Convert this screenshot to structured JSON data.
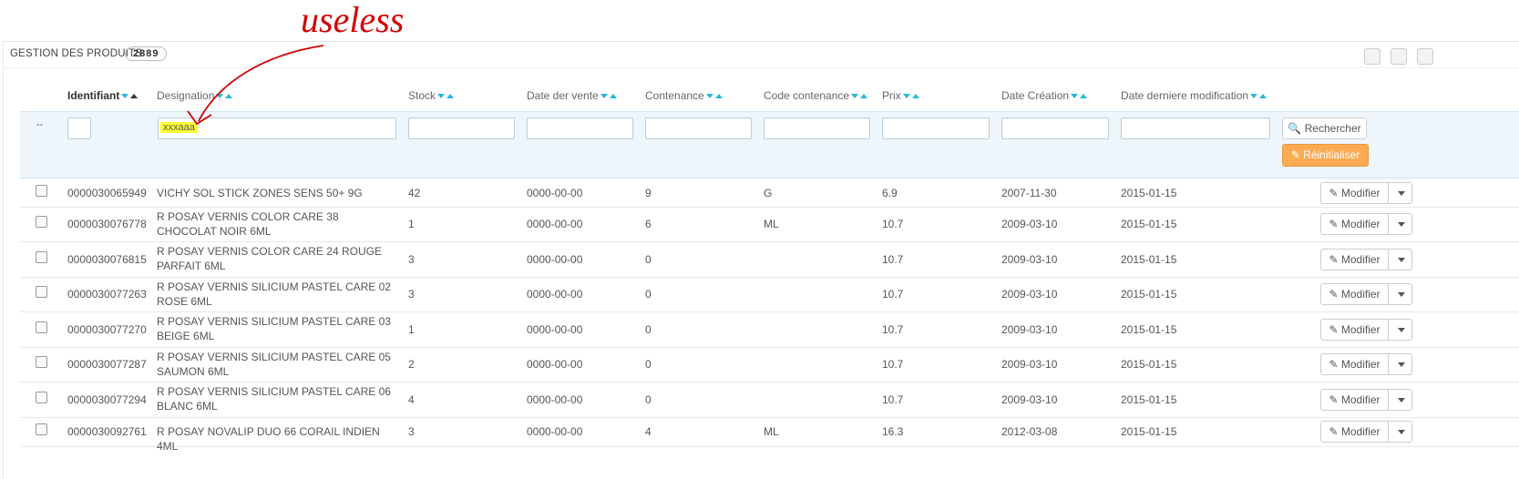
{
  "annotation": "useless",
  "header": {
    "title": "GESTION DES PRODUITS",
    "count": "2889"
  },
  "table": {
    "columns": [
      "Identifiant",
      "Designation",
      "Stock",
      "Date der vente",
      "Contenance",
      "Code contenance",
      "Prix",
      "Date Création",
      "Date derniere modification"
    ],
    "filter": {
      "placeholder": "--",
      "designation_value": "xxxaaa",
      "search_button": "Rechercher",
      "reset_button": "Réinitialiser"
    },
    "action_label": "Modifier",
    "rows": [
      [
        "0000030065949",
        "VICHY SOL STICK ZONES SENS 50+ 9G",
        "42",
        "0000-00-00",
        "9",
        "G",
        "6.9",
        "2007-11-30",
        "2015-01-15"
      ],
      [
        "0000030076778",
        "R POSAY VERNIS COLOR CARE 38 CHOCOLAT NOIR 6ML",
        "1",
        "0000-00-00",
        "6",
        "ML",
        "10.7",
        "2009-03-10",
        "2015-01-15"
      ],
      [
        "0000030076815",
        "R POSAY VERNIS COLOR CARE 24 ROUGE PARFAIT 6ML",
        "3",
        "0000-00-00",
        "0",
        null,
        "10.7",
        "2009-03-10",
        "2015-01-15"
      ],
      [
        "0000030077263",
        "R POSAY VERNIS SILICIUM PASTEL CARE 02 ROSE 6ML",
        "3",
        "0000-00-00",
        "0",
        null,
        "10.7",
        "2009-03-10",
        "2015-01-15"
      ],
      [
        "0000030077270",
        "R POSAY VERNIS SILICIUM PASTEL CARE 03 BEIGE 6ML",
        "1",
        "0000-00-00",
        "0",
        null,
        "10.7",
        "2009-03-10",
        "2015-01-15"
      ],
      [
        "0000030077287",
        "R POSAY VERNIS SILICIUM PASTEL CARE 05 SAUMON 6ML",
        "2",
        "0000-00-00",
        "0",
        null,
        "10.7",
        "2009-03-10",
        "2015-01-15"
      ],
      [
        "0000030077294",
        "R POSAY VERNIS SILICIUM PASTEL CARE 06 BLANC 6ML",
        "4",
        "0000-00-00",
        "0",
        null,
        "10.7",
        "2009-03-10",
        "2015-01-15"
      ],
      [
        "0000030092761",
        "R POSAY NOVALIP DUO 66 CORAIL INDIEN 4ML",
        "3",
        "0000-00-00",
        "4",
        "ML",
        "16.3",
        "2012-03-08",
        "2015-01-15"
      ]
    ]
  }
}
